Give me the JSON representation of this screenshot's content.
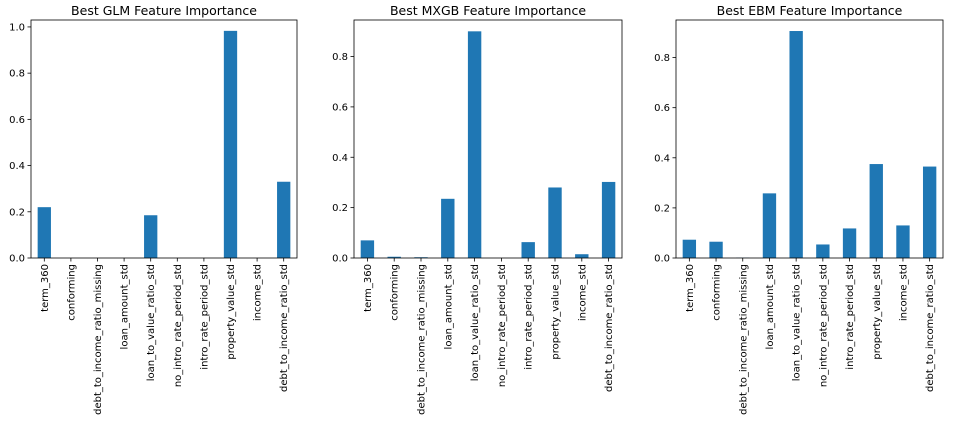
{
  "chart_data": [
    {
      "type": "bar",
      "title": "Best GLM Feature Importance",
      "categories": [
        "term_360",
        "conforming",
        "debt_to_income_ratio_missing",
        "loan_amount_std",
        "loan_to_value_ratio_std",
        "no_intro_rate_period_std",
        "intro_rate_period_std",
        "property_value_std",
        "income_std",
        "debt_to_income_ratio_std"
      ],
      "values": [
        0.22,
        0.0,
        0.0,
        0.0,
        0.185,
        0.0,
        0.0,
        0.983,
        0.0,
        0.33
      ],
      "ylim": [
        0,
        1.03
      ],
      "yticks": [
        "0.0",
        "0.2",
        "0.4",
        "0.6",
        "0.8",
        "1.0"
      ],
      "ytick_values": [
        0,
        0.2,
        0.4,
        0.6,
        0.8,
        1.0
      ],
      "bar_color": "#1f77b4",
      "grid": false
    },
    {
      "type": "bar",
      "title": "Best MXGB Feature Importance",
      "categories": [
        "term_360",
        "conforming",
        "debt_to_income_ratio_missing",
        "loan_amount_std",
        "loan_to_value_ratio_std",
        "no_intro_rate_period_std",
        "intro_rate_period_std",
        "property_value_std",
        "income_std",
        "debt_to_income_ratio_std"
      ],
      "values": [
        0.07,
        0.005,
        0.003,
        0.235,
        0.9,
        0.0,
        0.063,
        0.28,
        0.015,
        0.302
      ],
      "ylim": [
        0,
        0.945
      ],
      "yticks": [
        "0.0",
        "0.2",
        "0.4",
        "0.6",
        "0.8"
      ],
      "ytick_values": [
        0,
        0.2,
        0.4,
        0.6,
        0.8
      ],
      "bar_color": "#1f77b4",
      "grid": false
    },
    {
      "type": "bar",
      "title": "Best EBM Feature Importance",
      "categories": [
        "term_360",
        "conforming",
        "debt_to_income_ratio_missing",
        "loan_amount_std",
        "loan_to_value_ratio_std",
        "no_intro_rate_period_std",
        "intro_rate_period_std",
        "property_value_std",
        "income_std",
        "debt_to_income_ratio_std"
      ],
      "values": [
        0.073,
        0.065,
        0.001,
        0.258,
        0.906,
        0.054,
        0.118,
        0.375,
        0.13,
        0.365
      ],
      "ylim": [
        0,
        0.95
      ],
      "yticks": [
        "0.0",
        "0.2",
        "0.4",
        "0.6",
        "0.8"
      ],
      "ytick_values": [
        0,
        0.2,
        0.4,
        0.6,
        0.8
      ],
      "bar_color": "#1f77b4",
      "grid": false
    }
  ]
}
